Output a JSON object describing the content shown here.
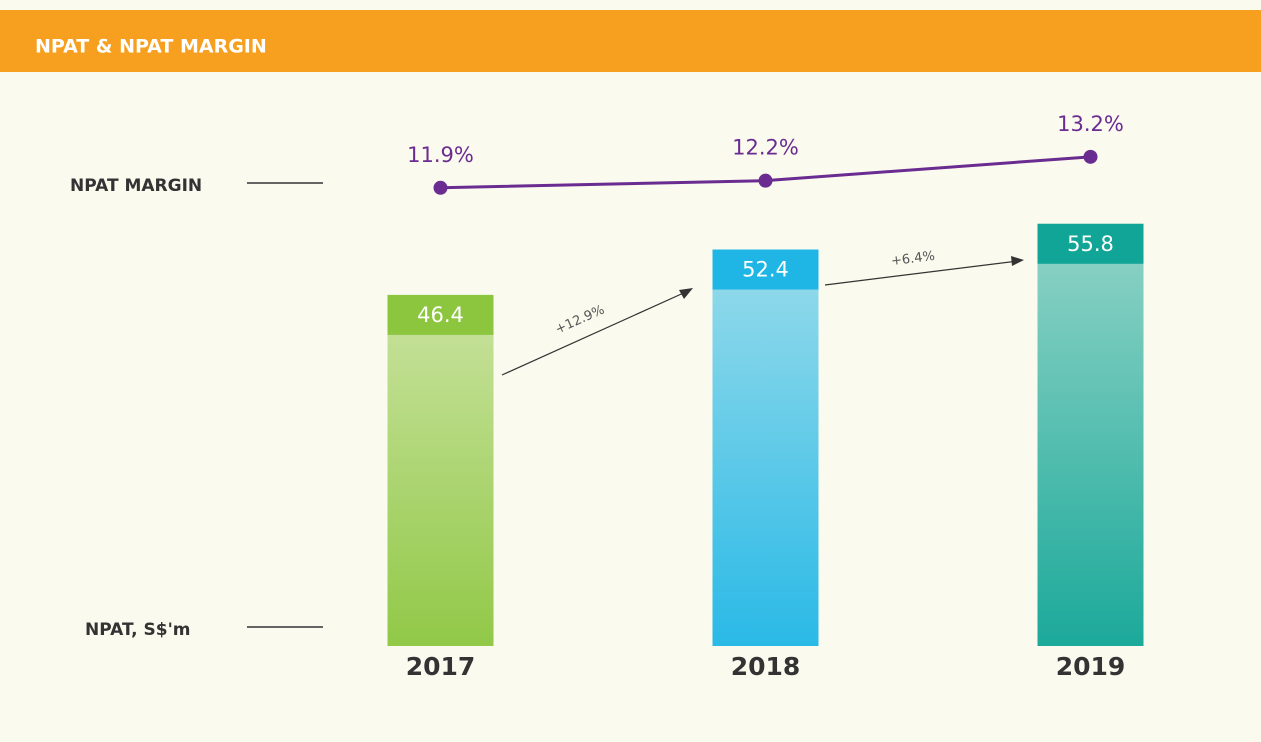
{
  "chart_data": {
    "type": "bar_line",
    "title": "NPAT & NPAT MARGIN",
    "categories": [
      "2017",
      "2018",
      "2019"
    ],
    "series": [
      {
        "name": "NPAT, S$'m",
        "type": "bar",
        "colors": [
          "#8cc63f",
          "#1fb6e6",
          "#10a596"
        ],
        "values": [
          46.4,
          52.4,
          55.8
        ]
      },
      {
        "name": "NPAT MARGIN",
        "type": "line",
        "axis": "y2",
        "color": "#6a2c91",
        "values": [
          11.9,
          12.2,
          13.2
        ],
        "value_labels": [
          "11.9%",
          "12.2%",
          "13.2%"
        ]
      }
    ],
    "annotations": [
      "+12.9%",
      "+6.4%"
    ],
    "ylim": [
      0,
      60
    ],
    "y2lim": [
      5,
      15
    ]
  }
}
